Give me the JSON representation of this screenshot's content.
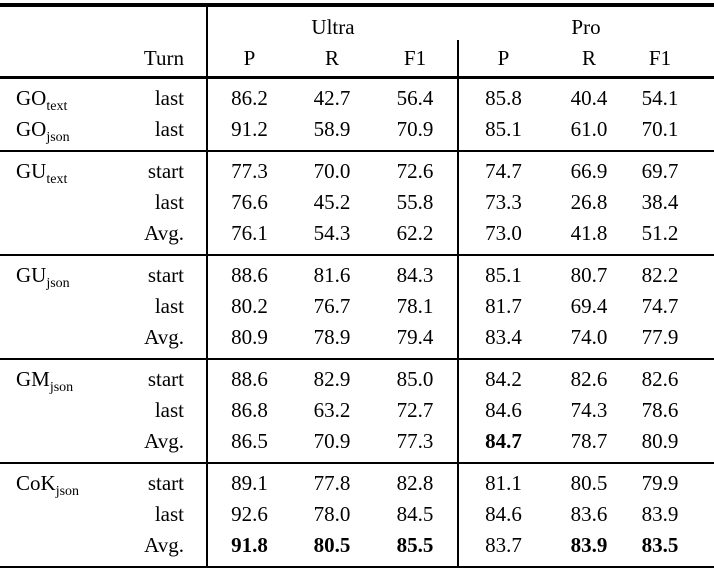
{
  "colors": {
    "text": "#000000",
    "background": "#ffffff",
    "rule": "#000000"
  },
  "header": {
    "turn": "Turn",
    "groups": [
      {
        "label": "Ultra"
      },
      {
        "label": "Pro"
      }
    ],
    "metrics": [
      "P",
      "R",
      "F1"
    ]
  },
  "sections": [
    {
      "rows": [
        {
          "label": {
            "base": "GO",
            "sub": "text"
          },
          "turn": "last",
          "values": [
            "86.2",
            "42.7",
            "56.4",
            "85.8",
            "40.4",
            "54.1"
          ],
          "bold": []
        },
        {
          "label": {
            "base": "GO",
            "sub": "json"
          },
          "turn": "last",
          "values": [
            "91.2",
            "58.9",
            "70.9",
            "85.1",
            "61.0",
            "70.1"
          ],
          "bold": []
        }
      ]
    },
    {
      "rows": [
        {
          "label": {
            "base": "GU",
            "sub": "text"
          },
          "turn": "start",
          "values": [
            "77.3",
            "70.0",
            "72.6",
            "74.7",
            "66.9",
            "69.7"
          ],
          "bold": []
        },
        {
          "label": null,
          "turn": "last",
          "values": [
            "76.6",
            "45.2",
            "55.8",
            "73.3",
            "26.8",
            "38.4"
          ],
          "bold": []
        },
        {
          "label": null,
          "turn": "Avg.",
          "values": [
            "76.1",
            "54.3",
            "62.2",
            "73.0",
            "41.8",
            "51.2"
          ],
          "bold": []
        }
      ]
    },
    {
      "rows": [
        {
          "label": {
            "base": "GU",
            "sub": "json"
          },
          "turn": "start",
          "values": [
            "88.6",
            "81.6",
            "84.3",
            "85.1",
            "80.7",
            "82.2"
          ],
          "bold": []
        },
        {
          "label": null,
          "turn": "last",
          "values": [
            "80.2",
            "76.7",
            "78.1",
            "81.7",
            "69.4",
            "74.7"
          ],
          "bold": []
        },
        {
          "label": null,
          "turn": "Avg.",
          "values": [
            "80.9",
            "78.9",
            "79.4",
            "83.4",
            "74.0",
            "77.9"
          ],
          "bold": []
        }
      ]
    },
    {
      "rows": [
        {
          "label": {
            "base": "GM",
            "sub": "json"
          },
          "turn": "start",
          "values": [
            "88.6",
            "82.9",
            "85.0",
            "84.2",
            "82.6",
            "82.6"
          ],
          "bold": []
        },
        {
          "label": null,
          "turn": "last",
          "values": [
            "86.8",
            "63.2",
            "72.7",
            "84.6",
            "74.3",
            "78.6"
          ],
          "bold": []
        },
        {
          "label": null,
          "turn": "Avg.",
          "values": [
            "86.5",
            "70.9",
            "77.3",
            "84.7",
            "78.7",
            "80.9"
          ],
          "bold": [
            3
          ]
        }
      ]
    },
    {
      "rows": [
        {
          "label": {
            "base": "CoK",
            "sub": "json"
          },
          "turn": "start",
          "values": [
            "89.1",
            "77.8",
            "82.8",
            "81.1",
            "80.5",
            "79.9"
          ],
          "bold": []
        },
        {
          "label": null,
          "turn": "last",
          "values": [
            "92.6",
            "78.0",
            "84.5",
            "84.6",
            "83.6",
            "83.9"
          ],
          "bold": []
        },
        {
          "label": null,
          "turn": "Avg.",
          "values": [
            "91.8",
            "80.5",
            "85.5",
            "83.7",
            "83.9",
            "83.5"
          ],
          "bold": [
            0,
            1,
            2,
            4,
            5
          ]
        }
      ]
    }
  ]
}
